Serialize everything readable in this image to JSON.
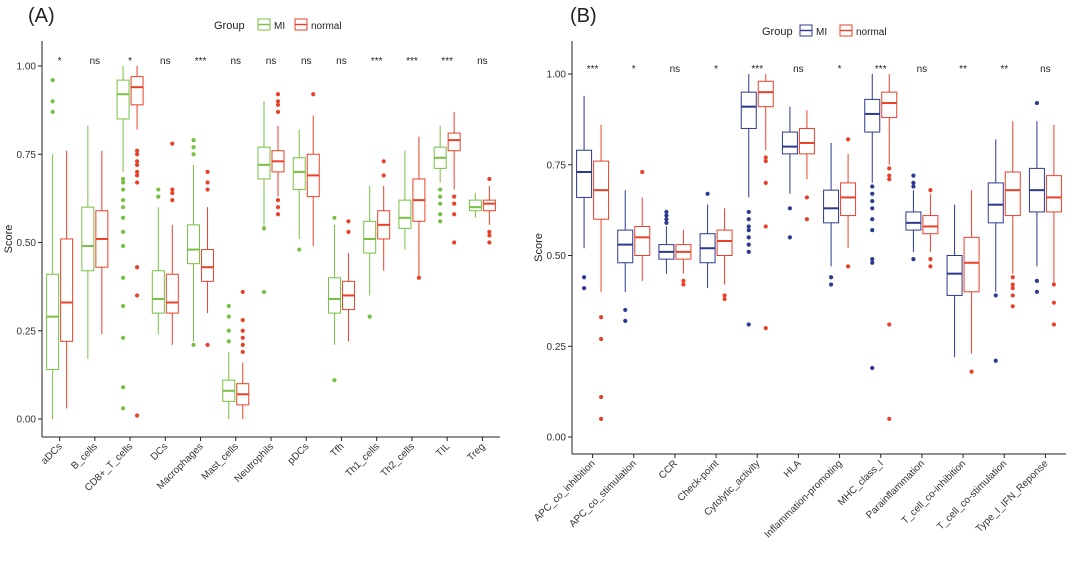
{
  "chart_data": [
    {
      "type": "box",
      "panel_label": "(A)",
      "legend": {
        "title": "Group",
        "placement": "top"
      },
      "ylabel": "Score",
      "xlabel": "",
      "ylim": [
        -0.05,
        1.05
      ],
      "yticks": [
        "0.00",
        "0.25",
        "0.50",
        "0.75",
        "1.00"
      ],
      "yticks_values": [
        0,
        0.25,
        0.5,
        0.75,
        1.0
      ],
      "grid": false,
      "categories": [
        "aDCs",
        "B_cells",
        "CD8+_T_cells",
        "DCs",
        "Macrophages",
        "Mast_cells",
        "Neutrophils",
        "pDCs",
        "Tfh",
        "Th1_cells",
        "Th2_cells",
        "TIL",
        "Treg"
      ],
      "significance": [
        "*",
        "ns",
        "*",
        "ns",
        "***",
        "ns",
        "ns",
        "ns",
        "ns",
        "***",
        "***",
        "***",
        "ns"
      ],
      "series": [
        {
          "name": "MI",
          "color": "#77c043",
          "boxes": [
            {
              "whislo": 0.0,
              "q1": 0.14,
              "med": 0.29,
              "q3": 0.41,
              "whishi": 0.75,
              "fliers": [
                0.87,
                0.9,
                0.96
              ]
            },
            {
              "whislo": 0.17,
              "q1": 0.42,
              "med": 0.49,
              "q3": 0.6,
              "whishi": 0.83,
              "fliers": []
            },
            {
              "whislo": 0.7,
              "q1": 0.85,
              "med": 0.92,
              "q3": 0.96,
              "whishi": 1.0,
              "fliers": [
                0.03,
                0.09,
                0.23,
                0.32,
                0.4,
                0.49,
                0.53,
                0.57,
                0.6,
                0.62,
                0.65,
                0.67,
                0.68
              ]
            },
            {
              "whislo": 0.24,
              "q1": 0.3,
              "med": 0.34,
              "q3": 0.42,
              "whishi": 0.6,
              "fliers": [
                0.63,
                0.65
              ]
            },
            {
              "whislo": 0.22,
              "q1": 0.44,
              "med": 0.48,
              "q3": 0.55,
              "whishi": 0.72,
              "fliers": [
                0.21,
                0.75,
                0.77,
                0.79
              ]
            },
            {
              "whislo": 0.0,
              "q1": 0.05,
              "med": 0.08,
              "q3": 0.11,
              "whishi": 0.19,
              "fliers": [
                0.22,
                0.25,
                0.29,
                0.32
              ]
            },
            {
              "whislo": 0.54,
              "q1": 0.68,
              "med": 0.72,
              "q3": 0.77,
              "whishi": 0.9,
              "fliers": [
                0.36,
                0.54
              ]
            },
            {
              "whislo": 0.51,
              "q1": 0.65,
              "med": 0.7,
              "q3": 0.74,
              "whishi": 0.82,
              "fliers": [
                0.48
              ]
            },
            {
              "whislo": 0.21,
              "q1": 0.3,
              "med": 0.34,
              "q3": 0.4,
              "whishi": 0.55,
              "fliers": [
                0.11,
                0.57
              ]
            },
            {
              "whislo": 0.35,
              "q1": 0.47,
              "med": 0.51,
              "q3": 0.56,
              "whishi": 0.66,
              "fliers": [
                0.29
              ]
            },
            {
              "whislo": 0.48,
              "q1": 0.54,
              "med": 0.57,
              "q3": 0.62,
              "whishi": 0.76,
              "fliers": []
            },
            {
              "whislo": 0.67,
              "q1": 0.71,
              "med": 0.74,
              "q3": 0.77,
              "whishi": 0.83,
              "fliers": [
                0.56,
                0.58,
                0.61,
                0.63,
                0.65
              ]
            },
            {
              "whislo": 0.57,
              "q1": 0.59,
              "med": 0.6,
              "q3": 0.62,
              "whishi": 0.64,
              "fliers": []
            }
          ]
        },
        {
          "name": "normal",
          "color": "#e8412a",
          "boxes": [
            {
              "whislo": 0.03,
              "q1": 0.22,
              "med": 0.33,
              "q3": 0.51,
              "whishi": 0.76,
              "fliers": []
            },
            {
              "whislo": 0.24,
              "q1": 0.43,
              "med": 0.51,
              "q3": 0.59,
              "whishi": 0.76,
              "fliers": []
            },
            {
              "whislo": 0.82,
              "q1": 0.89,
              "med": 0.94,
              "q3": 0.97,
              "whishi": 1.0,
              "fliers": [
                0.01,
                0.35,
                0.43,
                0.67,
                0.69,
                0.7,
                0.72,
                0.73,
                0.75,
                0.76
              ]
            },
            {
              "whislo": 0.21,
              "q1": 0.3,
              "med": 0.33,
              "q3": 0.41,
              "whishi": 0.55,
              "fliers": [
                0.62,
                0.64,
                0.65,
                0.78
              ]
            },
            {
              "whislo": 0.3,
              "q1": 0.39,
              "med": 0.43,
              "q3": 0.48,
              "whishi": 0.6,
              "fliers": [
                0.21,
                0.65,
                0.67,
                0.7
              ]
            },
            {
              "whislo": 0.0,
              "q1": 0.04,
              "med": 0.07,
              "q3": 0.1,
              "whishi": 0.16,
              "fliers": [
                0.19,
                0.21,
                0.23,
                0.25,
                0.28,
                0.36
              ]
            },
            {
              "whislo": 0.63,
              "q1": 0.7,
              "med": 0.73,
              "q3": 0.76,
              "whishi": 0.83,
              "fliers": [
                0.58,
                0.6,
                0.62,
                0.87,
                0.89,
                0.9,
                0.92
              ]
            },
            {
              "whislo": 0.49,
              "q1": 0.63,
              "med": 0.69,
              "q3": 0.75,
              "whishi": 0.86,
              "fliers": [
                0.92
              ]
            },
            {
              "whislo": 0.22,
              "q1": 0.31,
              "med": 0.35,
              "q3": 0.39,
              "whishi": 0.47,
              "fliers": [
                0.53,
                0.56
              ]
            },
            {
              "whislo": 0.42,
              "q1": 0.51,
              "med": 0.55,
              "q3": 0.59,
              "whishi": 0.66,
              "fliers": [
                0.69,
                0.73
              ]
            },
            {
              "whislo": 0.4,
              "q1": 0.56,
              "med": 0.62,
              "q3": 0.68,
              "whishi": 0.8,
              "fliers": [
                0.4
              ]
            },
            {
              "whislo": 0.65,
              "q1": 0.76,
              "med": 0.79,
              "q3": 0.81,
              "whishi": 0.87,
              "fliers": [
                0.5,
                0.58,
                0.61,
                0.63
              ]
            },
            {
              "whislo": 0.55,
              "q1": 0.59,
              "med": 0.61,
              "q3": 0.62,
              "whishi": 0.66,
              "fliers": [
                0.5,
                0.52,
                0.53,
                0.68
              ]
            }
          ]
        }
      ]
    },
    {
      "type": "box",
      "panel_label": "(B)",
      "legend": {
        "title": "Group",
        "placement": "top"
      },
      "ylabel": "Score",
      "xlabel": "",
      "ylim": [
        -0.05,
        1.05
      ],
      "yticks": [
        "0.00",
        "0.25",
        "0.50",
        "0.75",
        "1.00"
      ],
      "yticks_values": [
        0,
        0.25,
        0.5,
        0.75,
        1.0
      ],
      "grid": false,
      "categories": [
        "APC_co_inhibition",
        "APC_co_stimulation",
        "CCR",
        "Check-point",
        "Cytolytic_activity",
        "HLA",
        "Inflammation-promoting",
        "MHC_class_I",
        "Parainflammation",
        "T_cell_co-inhibition",
        "T_cell_co-stimulation",
        "Type_I_IFN_Reponse"
      ],
      "significance": [
        "***",
        "*",
        "ns",
        "*",
        "***",
        "ns",
        "*",
        "***",
        "ns",
        "**",
        "**",
        "ns"
      ],
      "series": [
        {
          "name": "MI",
          "color": "#2b3990",
          "boxes": [
            {
              "whislo": 0.52,
              "q1": 0.66,
              "med": 0.73,
              "q3": 0.79,
              "whishi": 0.94,
              "fliers": [
                0.41,
                0.44
              ]
            },
            {
              "whislo": 0.4,
              "q1": 0.48,
              "med": 0.53,
              "q3": 0.57,
              "whishi": 0.68,
              "fliers": [
                0.32,
                0.35
              ]
            },
            {
              "whislo": 0.45,
              "q1": 0.49,
              "med": 0.51,
              "q3": 0.53,
              "whishi": 0.58,
              "fliers": [
                0.59,
                0.6,
                0.61,
                0.62
              ]
            },
            {
              "whislo": 0.41,
              "q1": 0.48,
              "med": 0.52,
              "q3": 0.56,
              "whishi": 0.64,
              "fliers": [
                0.67
              ]
            },
            {
              "whislo": 0.66,
              "q1": 0.85,
              "med": 0.91,
              "q3": 0.95,
              "whishi": 1.0,
              "fliers": [
                0.31,
                0.51,
                0.53,
                0.55,
                0.57,
                0.58,
                0.6,
                0.62
              ]
            },
            {
              "whislo": 0.67,
              "q1": 0.78,
              "med": 0.8,
              "q3": 0.84,
              "whishi": 0.91,
              "fliers": [
                0.55,
                0.63
              ]
            },
            {
              "whislo": 0.47,
              "q1": 0.59,
              "med": 0.63,
              "q3": 0.68,
              "whishi": 0.81,
              "fliers": [
                0.42,
                0.44
              ]
            },
            {
              "whislo": 0.7,
              "q1": 0.84,
              "med": 0.89,
              "q3": 0.93,
              "whishi": 1.0,
              "fliers": [
                0.19,
                0.48,
                0.49,
                0.57,
                0.6,
                0.63,
                0.65,
                0.67,
                0.69
              ]
            },
            {
              "whislo": 0.51,
              "q1": 0.57,
              "med": 0.59,
              "q3": 0.62,
              "whishi": 0.68,
              "fliers": [
                0.49,
                0.69,
                0.7,
                0.72
              ]
            },
            {
              "whislo": 0.22,
              "q1": 0.39,
              "med": 0.45,
              "q3": 0.5,
              "whishi": 0.64,
              "fliers": []
            },
            {
              "whislo": 0.4,
              "q1": 0.59,
              "med": 0.64,
              "q3": 0.7,
              "whishi": 0.82,
              "fliers": [
                0.21,
                0.39
              ]
            },
            {
              "whislo": 0.47,
              "q1": 0.62,
              "med": 0.68,
              "q3": 0.74,
              "whishi": 0.87,
              "fliers": [
                0.4,
                0.43,
                0.92
              ]
            }
          ]
        },
        {
          "name": "normal",
          "color": "#e8412a",
          "boxes": [
            {
              "whislo": 0.4,
              "q1": 0.6,
              "med": 0.68,
              "q3": 0.76,
              "whishi": 0.86,
              "fliers": [
                0.05,
                0.11,
                0.27,
                0.33
              ]
            },
            {
              "whislo": 0.43,
              "q1": 0.5,
              "med": 0.55,
              "q3": 0.58,
              "whishi": 0.66,
              "fliers": [
                0.73
              ]
            },
            {
              "whislo": 0.45,
              "q1": 0.49,
              "med": 0.51,
              "q3": 0.53,
              "whishi": 0.57,
              "fliers": [
                0.42,
                0.43
              ]
            },
            {
              "whislo": 0.42,
              "q1": 0.5,
              "med": 0.54,
              "q3": 0.57,
              "whishi": 0.63,
              "fliers": [
                0.38,
                0.39
              ]
            },
            {
              "whislo": 0.79,
              "q1": 0.91,
              "med": 0.95,
              "q3": 0.98,
              "whishi": 1.0,
              "fliers": [
                0.3,
                0.58,
                0.7,
                0.76,
                0.77
              ]
            },
            {
              "whislo": 0.71,
              "q1": 0.78,
              "med": 0.81,
              "q3": 0.85,
              "whishi": 0.9,
              "fliers": [
                0.6,
                0.66
              ]
            },
            {
              "whislo": 0.52,
              "q1": 0.61,
              "med": 0.66,
              "q3": 0.7,
              "whishi": 0.78,
              "fliers": [
                0.47,
                0.82
              ]
            },
            {
              "whislo": 0.75,
              "q1": 0.88,
              "med": 0.92,
              "q3": 0.95,
              "whishi": 1.0,
              "fliers": [
                0.05,
                0.31,
                0.71,
                0.72,
                0.74
              ]
            },
            {
              "whislo": 0.51,
              "q1": 0.56,
              "med": 0.58,
              "q3": 0.61,
              "whishi": 0.67,
              "fliers": [
                0.47,
                0.49,
                0.68
              ]
            },
            {
              "whislo": 0.23,
              "q1": 0.4,
              "med": 0.48,
              "q3": 0.55,
              "whishi": 0.68,
              "fliers": [
                0.18
              ]
            },
            {
              "whislo": 0.45,
              "q1": 0.61,
              "med": 0.68,
              "q3": 0.73,
              "whishi": 0.87,
              "fliers": [
                0.36,
                0.39,
                0.41,
                0.42,
                0.44
              ]
            },
            {
              "whislo": 0.42,
              "q1": 0.62,
              "med": 0.66,
              "q3": 0.72,
              "whishi": 0.86,
              "fliers": [
                0.31,
                0.37,
                0.42
              ]
            }
          ]
        }
      ]
    }
  ]
}
